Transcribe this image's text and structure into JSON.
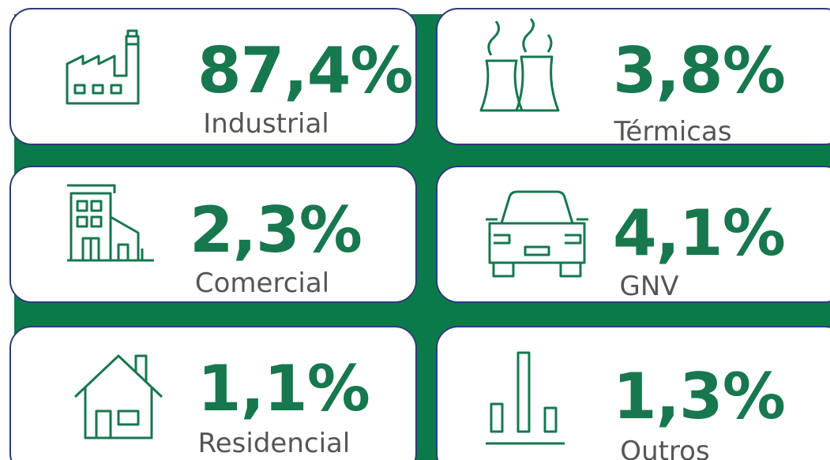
{
  "cards": [
    {
      "value": "87,4%",
      "label": "Industrial"
    },
    {
      "value": "3,8%",
      "label": "Térmicas"
    },
    {
      "value": "2,3%",
      "label": "Comercial"
    },
    {
      "value": "4,1%",
      "label": "GNV"
    },
    {
      "value": "1,1%",
      "label": "Residencial"
    },
    {
      "value": "1,3%",
      "label": "Outros"
    }
  ]
}
